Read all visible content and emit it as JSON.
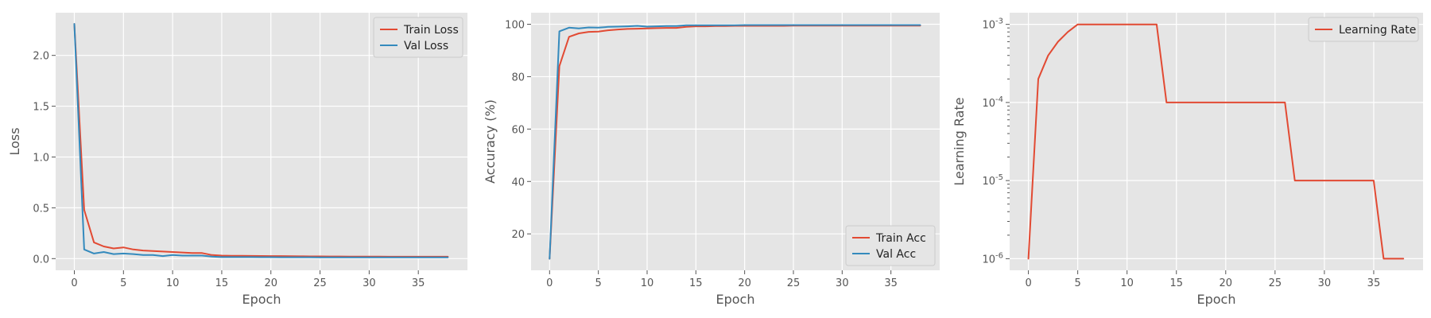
{
  "chart_data": [
    {
      "type": "line",
      "xlabel": "Epoch",
      "ylabel": "Loss",
      "xlim": [
        -1.9,
        40.0
      ],
      "ylim": [
        -0.115,
        2.42
      ],
      "xticks": [
        0,
        5,
        10,
        15,
        20,
        25,
        30,
        35
      ],
      "yticks": [
        0.0,
        0.5,
        1.0,
        1.5,
        2.0
      ],
      "ytick_labels": [
        "0.0",
        "0.5",
        "1.0",
        "1.5",
        "2.0"
      ],
      "yscale": "linear",
      "grid": true,
      "legend": "top-right",
      "x": [
        0,
        1,
        2,
        3,
        4,
        5,
        6,
        7,
        8,
        9,
        10,
        11,
        12,
        13,
        14,
        15,
        16,
        17,
        18,
        19,
        20,
        21,
        22,
        23,
        24,
        25,
        26,
        27,
        28,
        29,
        30,
        31,
        32,
        33,
        34,
        35,
        36,
        37,
        38
      ],
      "series": [
        {
          "name": "Train Loss",
          "color": "#E24A33",
          "values": [
            2.31,
            0.48,
            0.16,
            0.12,
            0.1,
            0.11,
            0.09,
            0.08,
            0.075,
            0.07,
            0.065,
            0.06,
            0.055,
            0.055,
            0.035,
            0.03,
            0.028,
            0.028,
            0.027,
            0.026,
            0.025,
            0.025,
            0.024,
            0.023,
            0.022,
            0.022,
            0.021,
            0.021,
            0.02,
            0.02,
            0.02,
            0.02,
            0.019,
            0.019,
            0.019,
            0.019,
            0.019,
            0.019,
            0.019
          ]
        },
        {
          "name": "Val Loss",
          "color": "#348ABD",
          "values": [
            2.31,
            0.09,
            0.05,
            0.065,
            0.045,
            0.05,
            0.045,
            0.035,
            0.035,
            0.025,
            0.035,
            0.03,
            0.03,
            0.03,
            0.02,
            0.015,
            0.015,
            0.015,
            0.015,
            0.014,
            0.014,
            0.013,
            0.013,
            0.013,
            0.013,
            0.012,
            0.012,
            0.012,
            0.012,
            0.012,
            0.012,
            0.012,
            0.012,
            0.012,
            0.012,
            0.012,
            0.012,
            0.012,
            0.012
          ]
        }
      ]
    },
    {
      "type": "line",
      "xlabel": "Epoch",
      "ylabel": "Accuracy (%)",
      "xlim": [
        -1.9,
        40.0
      ],
      "ylim": [
        6.1,
        104.4
      ],
      "xticks": [
        0,
        5,
        10,
        15,
        20,
        25,
        30,
        35
      ],
      "yticks": [
        20,
        40,
        60,
        80,
        100
      ],
      "ytick_labels": [
        "20",
        "40",
        "60",
        "80",
        "100"
      ],
      "yscale": "linear",
      "grid": true,
      "legend": "bottom-right",
      "x": [
        0,
        1,
        2,
        3,
        4,
        5,
        6,
        7,
        8,
        9,
        10,
        11,
        12,
        13,
        14,
        15,
        16,
        17,
        18,
        19,
        20,
        21,
        22,
        23,
        24,
        25,
        26,
        27,
        28,
        29,
        30,
        31,
        32,
        33,
        34,
        35,
        36,
        37,
        38
      ],
      "series": [
        {
          "name": "Train Acc",
          "color": "#E24A33",
          "values": [
            10.5,
            84.0,
            95.2,
            96.5,
            97.1,
            97.2,
            97.7,
            98.0,
            98.2,
            98.3,
            98.4,
            98.5,
            98.6,
            98.6,
            99.0,
            99.2,
            99.2,
            99.3,
            99.3,
            99.4,
            99.4,
            99.4,
            99.4,
            99.4,
            99.4,
            99.5,
            99.5,
            99.5,
            99.5,
            99.5,
            99.5,
            99.5,
            99.5,
            99.5,
            99.5,
            99.5,
            99.5,
            99.5,
            99.5
          ]
        },
        {
          "name": "Val Acc",
          "color": "#348ABD",
          "values": [
            10.5,
            97.3,
            98.7,
            98.4,
            98.8,
            98.7,
            99.0,
            99.1,
            99.2,
            99.4,
            99.1,
            99.2,
            99.3,
            99.3,
            99.6,
            99.6,
            99.6,
            99.6,
            99.6,
            99.6,
            99.7,
            99.7,
            99.7,
            99.7,
            99.7,
            99.7,
            99.7,
            99.7,
            99.7,
            99.7,
            99.7,
            99.7,
            99.7,
            99.7,
            99.7,
            99.7,
            99.7,
            99.7,
            99.7
          ]
        }
      ]
    },
    {
      "type": "line",
      "xlabel": "Epoch",
      "ylabel": "Learning Rate",
      "xlim": [
        -1.9,
        40.0
      ],
      "ylim": [
        7.1e-07,
        0.00141
      ],
      "xticks": [
        0,
        5,
        10,
        15,
        20,
        25,
        30,
        35
      ],
      "yticks": [
        1e-06,
        1e-05,
        0.0001,
        0.001
      ],
      "ytick_labels": [
        "10^-6",
        "10^-5",
        "10^-4",
        "10^-3"
      ],
      "yscale": "log",
      "grid": true,
      "legend": "top-right",
      "x": [
        0,
        1,
        2,
        3,
        4,
        5,
        6,
        7,
        8,
        9,
        10,
        11,
        12,
        13,
        14,
        15,
        16,
        17,
        18,
        19,
        20,
        21,
        22,
        23,
        24,
        25,
        26,
        27,
        28,
        29,
        30,
        31,
        32,
        33,
        34,
        35,
        36,
        37,
        38
      ],
      "series": [
        {
          "name": "Learning Rate",
          "color": "#E24A33",
          "values": [
            1e-06,
            0.0002,
            0.0004,
            0.0006,
            0.0008,
            0.001,
            0.001,
            0.001,
            0.001,
            0.001,
            0.001,
            0.001,
            0.001,
            0.001,
            0.0001,
            0.0001,
            0.0001,
            0.0001,
            0.0001,
            0.0001,
            0.0001,
            0.0001,
            0.0001,
            0.0001,
            0.0001,
            0.0001,
            0.0001,
            1e-05,
            1e-05,
            1e-05,
            1e-05,
            1e-05,
            1e-05,
            1e-05,
            1e-05,
            1e-05,
            1e-06,
            1e-06,
            1e-06
          ]
        }
      ]
    }
  ]
}
